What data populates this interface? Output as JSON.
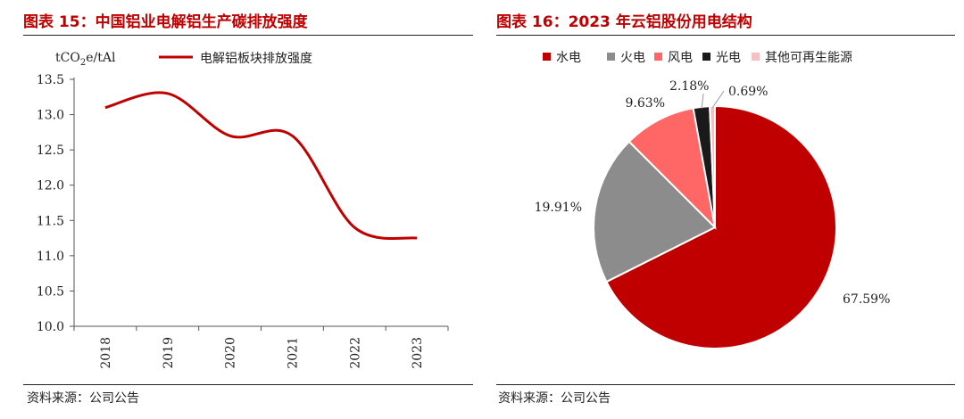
{
  "left_panel": {
    "title": "图表 15：中国铝业电解铝生产碳排放强度",
    "source": "资料来源：公司公告"
  },
  "right_panel": {
    "title": "图表 16：2023 年云铝股份用电结构",
    "source": "资料来源：公司公告"
  },
  "chart_data": [
    {
      "type": "line",
      "title": "图表 15：中国铝业电解铝生产碳排放强度",
      "ylabel_parts": [
        "tCO",
        "2",
        "e/tAl"
      ],
      "x": [
        "2018",
        "2019",
        "2020",
        "2021",
        "2022",
        "2023"
      ],
      "ylim": [
        10.0,
        13.5
      ],
      "yticks": [
        "10.0",
        "10.5",
        "11.0",
        "11.5",
        "12.0",
        "12.5",
        "13.0",
        "13.5"
      ],
      "series": [
        {
          "name": "电解铝板块排放强度",
          "color": "#c00000",
          "values": [
            13.1,
            13.3,
            12.7,
            12.7,
            11.4,
            11.25
          ]
        }
      ],
      "legend": "top"
    },
    {
      "type": "pie",
      "title": "图表 16：2023 年云铝股份用电结构",
      "categories": [
        "水电",
        "火电",
        "风电",
        "光电",
        "其他可再生能源"
      ],
      "values": [
        67.59,
        19.91,
        9.63,
        2.18,
        0.69
      ],
      "labels": [
        "67.59%",
        "19.91%",
        "9.63%",
        "2.18%",
        "0.69%"
      ],
      "colors": [
        "#c00000",
        "#8c8c8c",
        "#ff6666",
        "#1a1a1a",
        "#f7c0c0"
      ],
      "legend": "top"
    }
  ]
}
